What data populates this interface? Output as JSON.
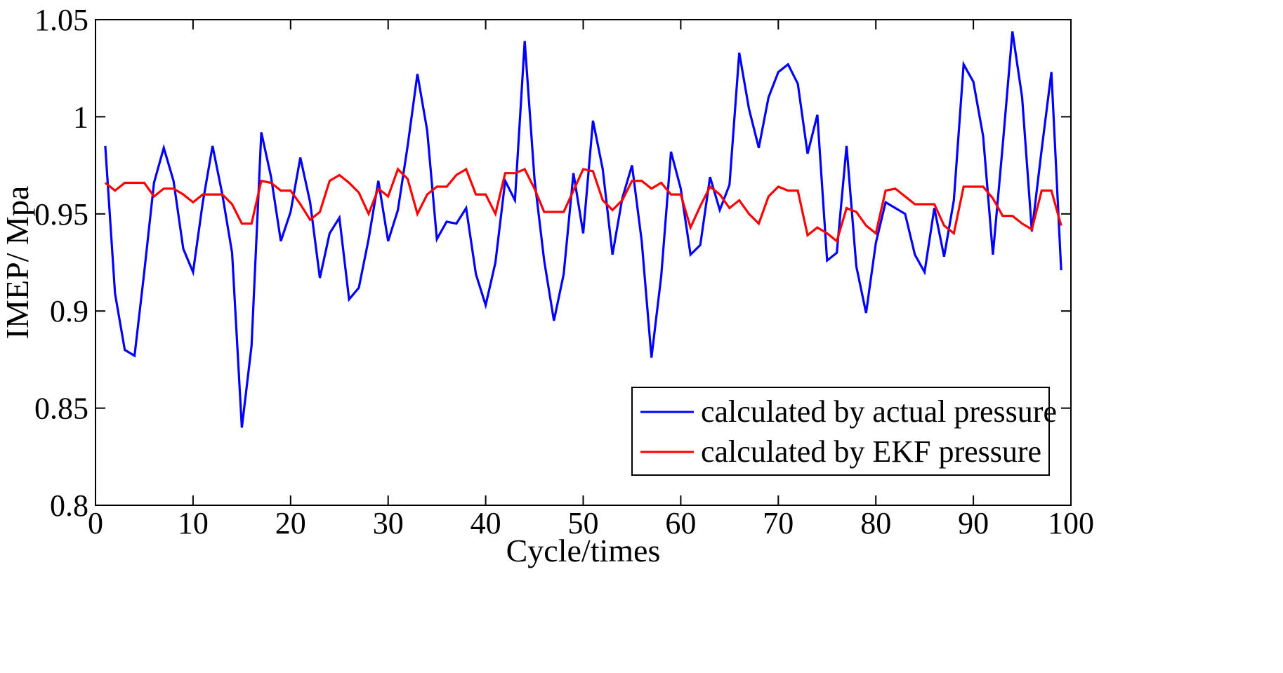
{
  "chart_data": {
    "type": "line",
    "title": "",
    "xlabel": "Cycle/times",
    "ylabel": "IMEP/ Mpa",
    "xlim": [
      0,
      100
    ],
    "ylim": [
      0.8,
      1.05
    ],
    "xticks": [
      0,
      10,
      20,
      30,
      40,
      50,
      60,
      70,
      80,
      90,
      100
    ],
    "yticks": [
      0.8,
      0.85,
      0.9,
      0.95,
      1.0,
      1.05
    ],
    "xtick_labels": [
      "0",
      "10",
      "20",
      "30",
      "40",
      "50",
      "60",
      "70",
      "80",
      "90",
      "100"
    ],
    "ytick_labels": [
      "0.8",
      "0.85",
      "0.9",
      "0.95",
      "1",
      "1.05"
    ],
    "grid": false,
    "legend_position": "bottom-right",
    "x": [
      1,
      2,
      3,
      4,
      5,
      6,
      7,
      8,
      9,
      10,
      11,
      12,
      13,
      14,
      15,
      16,
      17,
      18,
      19,
      20,
      21,
      22,
      23,
      24,
      25,
      26,
      27,
      28,
      29,
      30,
      31,
      32,
      33,
      34,
      35,
      36,
      37,
      38,
      39,
      40,
      41,
      42,
      43,
      44,
      45,
      46,
      47,
      48,
      49,
      50,
      51,
      52,
      53,
      54,
      55,
      56,
      57,
      58,
      59,
      60,
      61,
      62,
      63,
      64,
      65,
      66,
      67,
      68,
      69,
      70,
      71,
      72,
      73,
      74,
      75,
      76,
      77,
      78,
      79,
      80,
      81,
      82,
      83,
      84,
      85,
      86,
      87,
      88,
      89,
      90,
      91,
      92,
      93,
      94,
      95,
      96,
      97,
      98,
      99
    ],
    "series": [
      {
        "name": "calculated by actual pressure",
        "color": "#0000ff",
        "values": [
          0.985,
          0.909,
          0.88,
          0.877,
          0.92,
          0.966,
          0.984,
          0.967,
          0.932,
          0.92,
          0.956,
          0.985,
          0.96,
          0.93,
          0.84,
          0.882,
          0.992,
          0.969,
          0.936,
          0.951,
          0.979,
          0.956,
          0.917,
          0.94,
          0.948,
          0.906,
          0.912,
          0.937,
          0.967,
          0.936,
          0.952,
          0.985,
          1.022,
          0.993,
          0.937,
          0.946,
          0.945,
          0.953,
          0.919,
          0.903,
          0.925,
          0.967,
          0.957,
          1.039,
          0.968,
          0.926,
          0.895,
          0.919,
          0.971,
          0.94,
          0.998,
          0.973,
          0.929,
          0.958,
          0.975,
          0.936,
          0.876,
          0.918,
          0.982,
          0.963,
          0.929,
          0.934,
          0.969,
          0.952,
          0.965,
          1.033,
          1.004,
          0.984,
          1.01,
          1.023,
          1.027,
          1.017,
          0.981,
          1.001,
          0.926,
          0.93,
          0.985,
          0.923,
          0.899,
          0.935,
          0.956,
          0.953,
          0.95,
          0.929,
          0.92,
          0.953,
          0.928,
          0.957,
          1.027,
          1.018,
          0.99,
          0.929,
          0.985,
          1.044,
          1.01,
          0.941,
          0.983,
          1.023,
          0.921
        ]
      },
      {
        "name": "calculated by EKF pressure",
        "color": "#ff0000",
        "values": [
          0.966,
          0.962,
          0.966,
          0.966,
          0.966,
          0.959,
          0.963,
          0.963,
          0.96,
          0.956,
          0.96,
          0.96,
          0.96,
          0.955,
          0.945,
          0.945,
          0.967,
          0.966,
          0.962,
          0.962,
          0.955,
          0.947,
          0.951,
          0.967,
          0.97,
          0.966,
          0.961,
          0.95,
          0.963,
          0.959,
          0.973,
          0.968,
          0.95,
          0.96,
          0.964,
          0.964,
          0.97,
          0.973,
          0.96,
          0.96,
          0.95,
          0.971,
          0.971,
          0.973,
          0.963,
          0.951,
          0.951,
          0.951,
          0.962,
          0.973,
          0.972,
          0.957,
          0.952,
          0.957,
          0.967,
          0.967,
          0.963,
          0.966,
          0.96,
          0.96,
          0.943,
          0.954,
          0.964,
          0.96,
          0.953,
          0.957,
          0.95,
          0.945,
          0.959,
          0.964,
          0.962,
          0.962,
          0.939,
          0.943,
          0.94,
          0.936,
          0.953,
          0.951,
          0.944,
          0.94,
          0.962,
          0.963,
          0.959,
          0.955,
          0.955,
          0.955,
          0.944,
          0.94,
          0.964,
          0.964,
          0.964,
          0.958,
          0.949,
          0.949,
          0.945,
          0.942,
          0.962,
          0.962,
          0.944
        ]
      }
    ]
  }
}
